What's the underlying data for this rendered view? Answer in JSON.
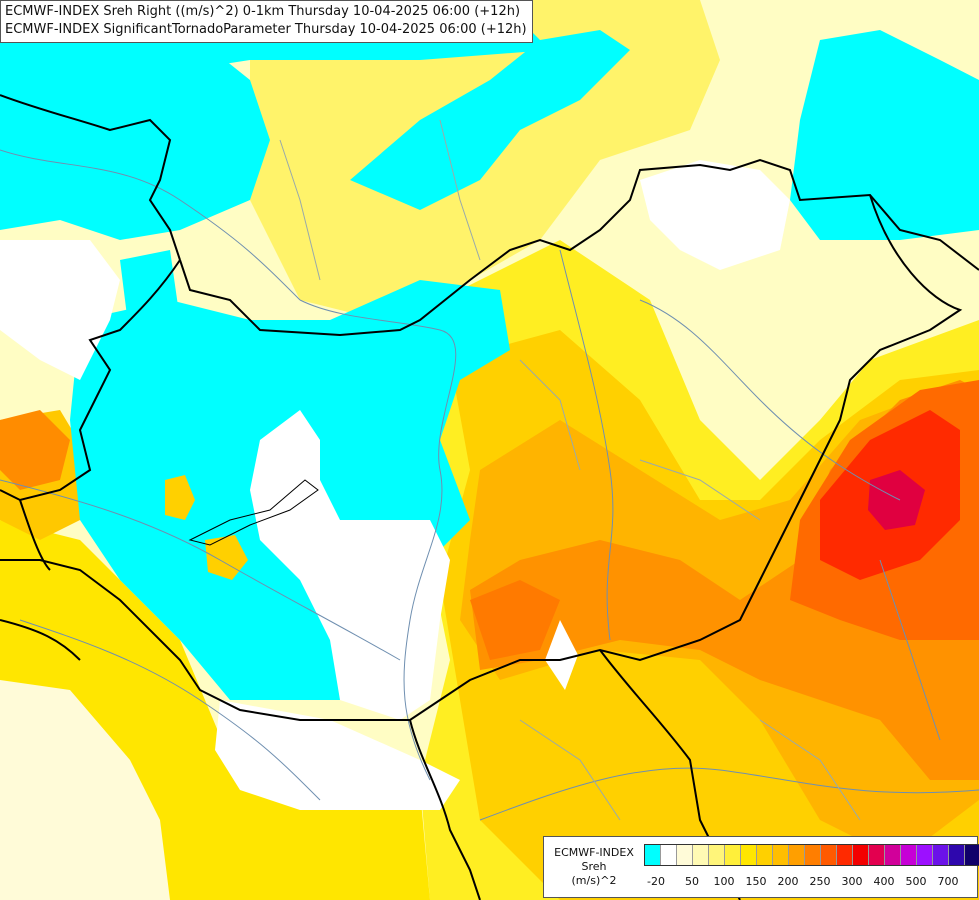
{
  "header": {
    "line1": "ECMWF-INDEX Sreh Right ((m/s)^2) 0-1km Thursday 10-04-2025 06:00 (+12h)",
    "line2": "ECMWF-INDEX SignificantTornadoParameter Thursday 10-04-2025 06:00 (+12h)"
  },
  "legend": {
    "title_line1": "ECMWF-INDEX",
    "title_line2": "Sreh",
    "title_line3": "(m/s)^2",
    "colors": [
      "#00ffff",
      "#ffffff",
      "#fffbd8",
      "#fffab4",
      "#fff57a",
      "#ffef3a",
      "#ffe600",
      "#ffd000",
      "#ffbe00",
      "#ff9f00",
      "#ff7e00",
      "#ff5a00",
      "#ff2a00",
      "#f30000",
      "#e3004f",
      "#d1009a",
      "#c600d6",
      "#9c10ff",
      "#6b12e8",
      "#2e07ad",
      "#10006a"
    ],
    "ticks": [
      "-20",
      "50",
      "100",
      "150",
      "200",
      "250",
      "300",
      "400",
      "500",
      "700"
    ]
  },
  "map_colors": {
    "background": "#fffdc4",
    "cyan": "#00ffff",
    "white": "#ffffff",
    "lightyellow": "#fff8a0",
    "yellow": "#ffee22",
    "gold": "#ffd000",
    "amber": "#ffb400",
    "orange": "#ff8c00",
    "darkorange": "#ff6a00",
    "red": "#ff2a00",
    "crimson": "#e00040",
    "border": "#000000",
    "river": "#6f8fb0"
  }
}
